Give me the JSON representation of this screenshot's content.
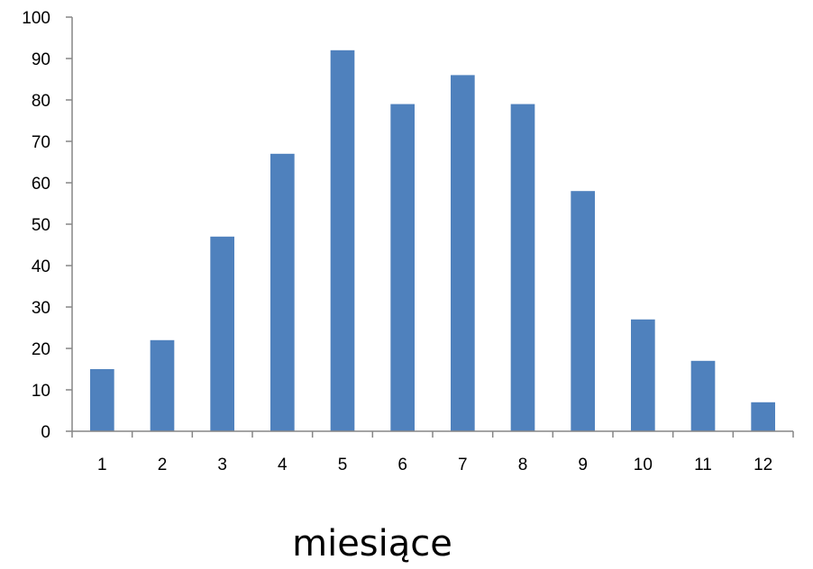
{
  "chart_data": {
    "type": "bar",
    "title": "",
    "xlabel": "miesiące",
    "ylabel": "",
    "categories": [
      "1",
      "2",
      "3",
      "4",
      "5",
      "6",
      "7",
      "8",
      "9",
      "10",
      "11",
      "12"
    ],
    "values": [
      15,
      22,
      47,
      67,
      92,
      79,
      86,
      79,
      58,
      27,
      17,
      7
    ],
    "ylim": [
      0,
      100
    ],
    "yticks": [
      0,
      10,
      20,
      30,
      40,
      50,
      60,
      70,
      80,
      90,
      100
    ],
    "grid": false,
    "legend": "none",
    "bar_color": "#4f81bd",
    "axis_color": "#868686"
  }
}
